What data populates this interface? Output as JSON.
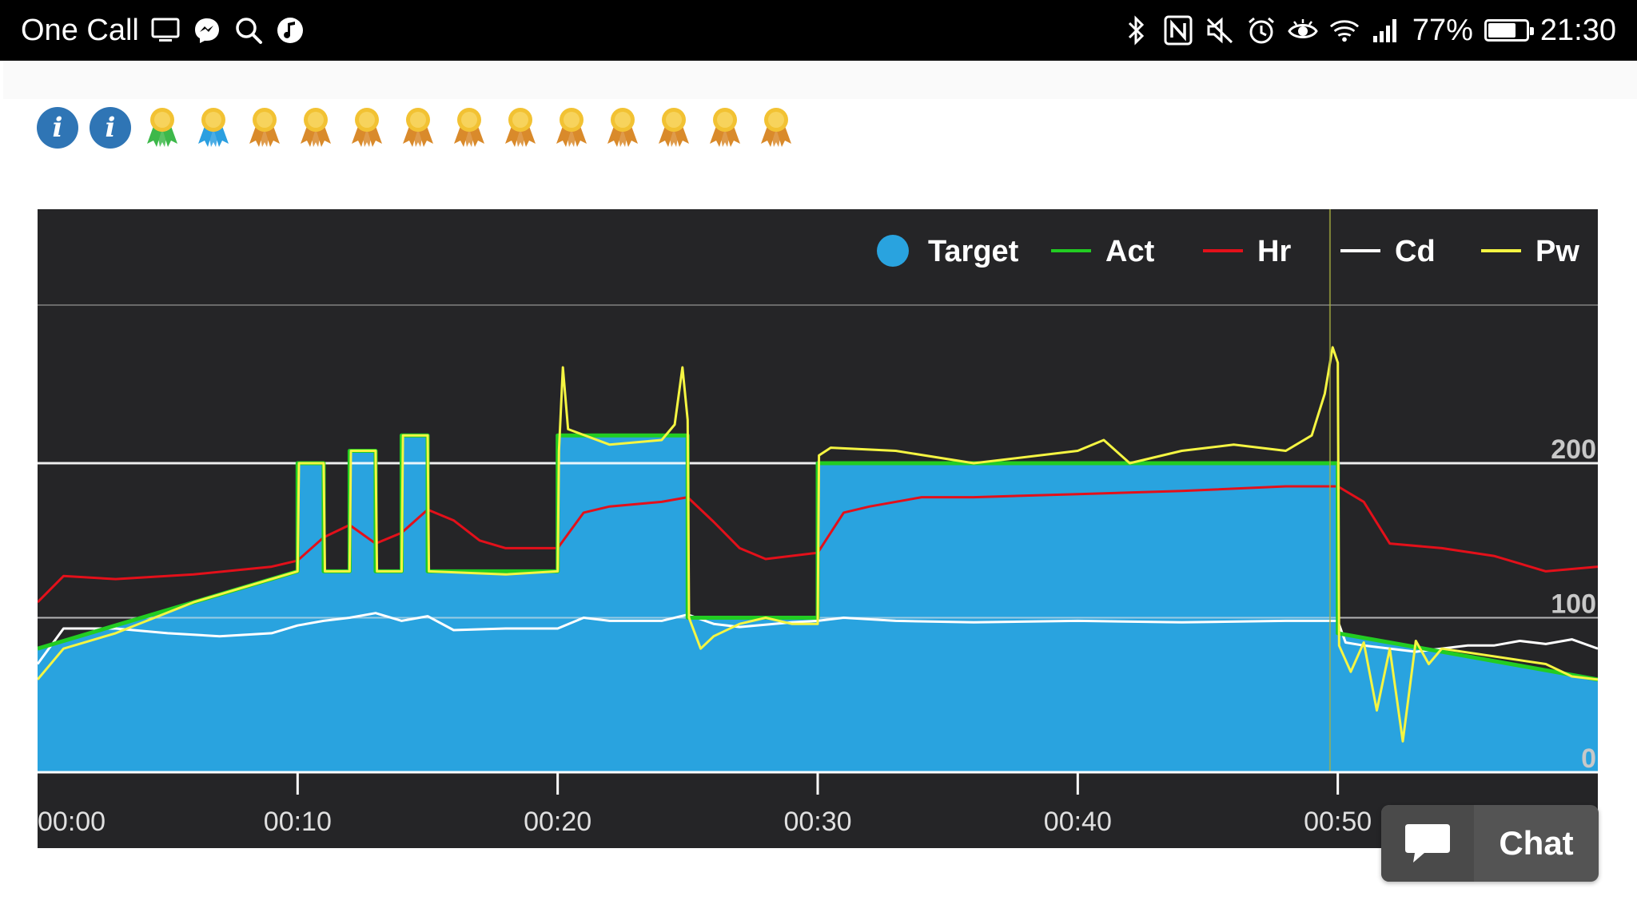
{
  "status_bar": {
    "app_name": "One Call",
    "battery": "77%",
    "battery_level": 0.77,
    "time": "21:30",
    "left_icons": [
      "screen-icon",
      "messenger-icon",
      "search-icon",
      "music-icon"
    ],
    "right_icons": [
      "bluetooth-icon",
      "nfc-icon",
      "mute-icon",
      "alarm-icon",
      "eye-icon",
      "wifi-icon",
      "signal-icon",
      "battery-icon"
    ]
  },
  "badges": {
    "info_count": 2,
    "awards": [
      "green",
      "blue",
      "bronze",
      "bronze",
      "bronze",
      "bronze",
      "bronze",
      "bronze",
      "bronze",
      "bronze",
      "bronze",
      "bronze",
      "bronze"
    ],
    "award_colors": {
      "green": "#3db84a",
      "blue": "#2b9fe0",
      "bronze": "#d98a2b",
      "gold": "#f2c233"
    }
  },
  "chart_data": {
    "type": "line",
    "x_unit": "minutes",
    "xlim": [
      0,
      60
    ],
    "ylim": [
      0,
      240
    ],
    "y_ticks": [
      0,
      100,
      200
    ],
    "y_tick_labels": [
      "0",
      "100",
      "200"
    ],
    "x_ticks": [
      0,
      10,
      20,
      30,
      40,
      50
    ],
    "x_tick_labels": [
      "00:00",
      "00:10",
      "00:20",
      "00:30",
      "00:40",
      "00:50"
    ],
    "legend_position": "top-right",
    "grid": true,
    "colors": {
      "Target": "#29a3df",
      "Act": "#22cc22",
      "Hr": "#e3101a",
      "Cd": "#ffffff",
      "Pw": "#f5f542",
      "background": "#252527"
    },
    "series": [
      {
        "name": "Target",
        "kind": "area",
        "x": [
          0,
          10,
          10,
          11,
          11,
          12,
          12,
          13,
          13,
          14,
          14,
          15,
          15,
          20,
          20,
          25,
          25,
          30,
          30,
          50,
          50,
          60
        ],
        "y": [
          80,
          130,
          200,
          200,
          130,
          130,
          208,
          208,
          130,
          130,
          218,
          218,
          130,
          130,
          218,
          218,
          100,
          100,
          200,
          200,
          90,
          60
        ]
      },
      {
        "name": "Act",
        "kind": "line",
        "x": [
          0,
          10,
          10,
          11,
          11,
          12,
          12,
          13,
          13,
          14,
          14,
          15,
          15,
          20,
          20,
          25,
          25,
          30,
          30,
          50,
          50,
          60
        ],
        "y": [
          80,
          130,
          200,
          200,
          130,
          130,
          208,
          208,
          130,
          130,
          218,
          218,
          130,
          130,
          218,
          218,
          100,
          100,
          200,
          200,
          90,
          60
        ]
      },
      {
        "name": "Hr",
        "kind": "line",
        "x": [
          0,
          1,
          3,
          6,
          9,
          10,
          11,
          12,
          13,
          14,
          15,
          16,
          17,
          18,
          20,
          21,
          22,
          24,
          25,
          26,
          27,
          28,
          30,
          31,
          32,
          34,
          36,
          40,
          44,
          48,
          50,
          51,
          52,
          54,
          56,
          58,
          60
        ],
        "y": [
          110,
          127,
          125,
          128,
          133,
          137,
          152,
          160,
          148,
          155,
          170,
          163,
          150,
          145,
          145,
          168,
          172,
          175,
          178,
          162,
          145,
          138,
          142,
          168,
          172,
          178,
          178,
          180,
          182,
          185,
          185,
          175,
          148,
          145,
          140,
          130,
          133
        ]
      },
      {
        "name": "Cd",
        "kind": "line",
        "x": [
          0,
          1,
          3,
          5,
          7,
          9,
          10,
          11,
          12,
          13,
          14,
          15,
          16,
          18,
          20,
          21,
          22,
          24,
          25,
          26,
          27,
          29,
          30,
          31,
          33,
          36,
          40,
          44,
          48,
          50,
          50.3,
          51,
          53,
          55,
          56,
          57,
          58,
          59,
          60
        ],
        "y": [
          70,
          93,
          93,
          90,
          88,
          90,
          95,
          98,
          100,
          103,
          98,
          101,
          92,
          93,
          93,
          100,
          98,
          98,
          102,
          96,
          94,
          97,
          98,
          100,
          98,
          97,
          98,
          97,
          98,
          98,
          84,
          82,
          78,
          82,
          82,
          85,
          83,
          86,
          80
        ]
      },
      {
        "name": "Pw",
        "kind": "line",
        "x": [
          0,
          1,
          3,
          6,
          9,
          10,
          10.05,
          11,
          11.05,
          12,
          12.05,
          13,
          13.05,
          14,
          14.05,
          15,
          15.05,
          18,
          20,
          20.05,
          20.2,
          20.4,
          22,
          24,
          24.5,
          24.8,
          25,
          25.05,
          25.5,
          26,
          27,
          28,
          29,
          30,
          30.05,
          30.5,
          33,
          36,
          40,
          41,
          42,
          44,
          46,
          48,
          49,
          49.5,
          49.8,
          50,
          50.05,
          50.5,
          51,
          51.5,
          52,
          52.5,
          53,
          53.5,
          54,
          56,
          58,
          59,
          60
        ],
        "y": [
          60,
          80,
          90,
          110,
          125,
          130,
          200,
          200,
          130,
          130,
          208,
          208,
          130,
          130,
          218,
          218,
          130,
          128,
          130,
          208,
          262,
          222,
          212,
          215,
          225,
          262,
          228,
          100,
          80,
          88,
          96,
          100,
          96,
          96,
          205,
          210,
          208,
          200,
          208,
          215,
          200,
          208,
          212,
          208,
          218,
          245,
          275,
          265,
          82,
          65,
          84,
          40,
          80,
          20,
          85,
          70,
          80,
          75,
          70,
          62,
          60
        ]
      }
    ]
  },
  "chat": {
    "label": "Chat"
  }
}
